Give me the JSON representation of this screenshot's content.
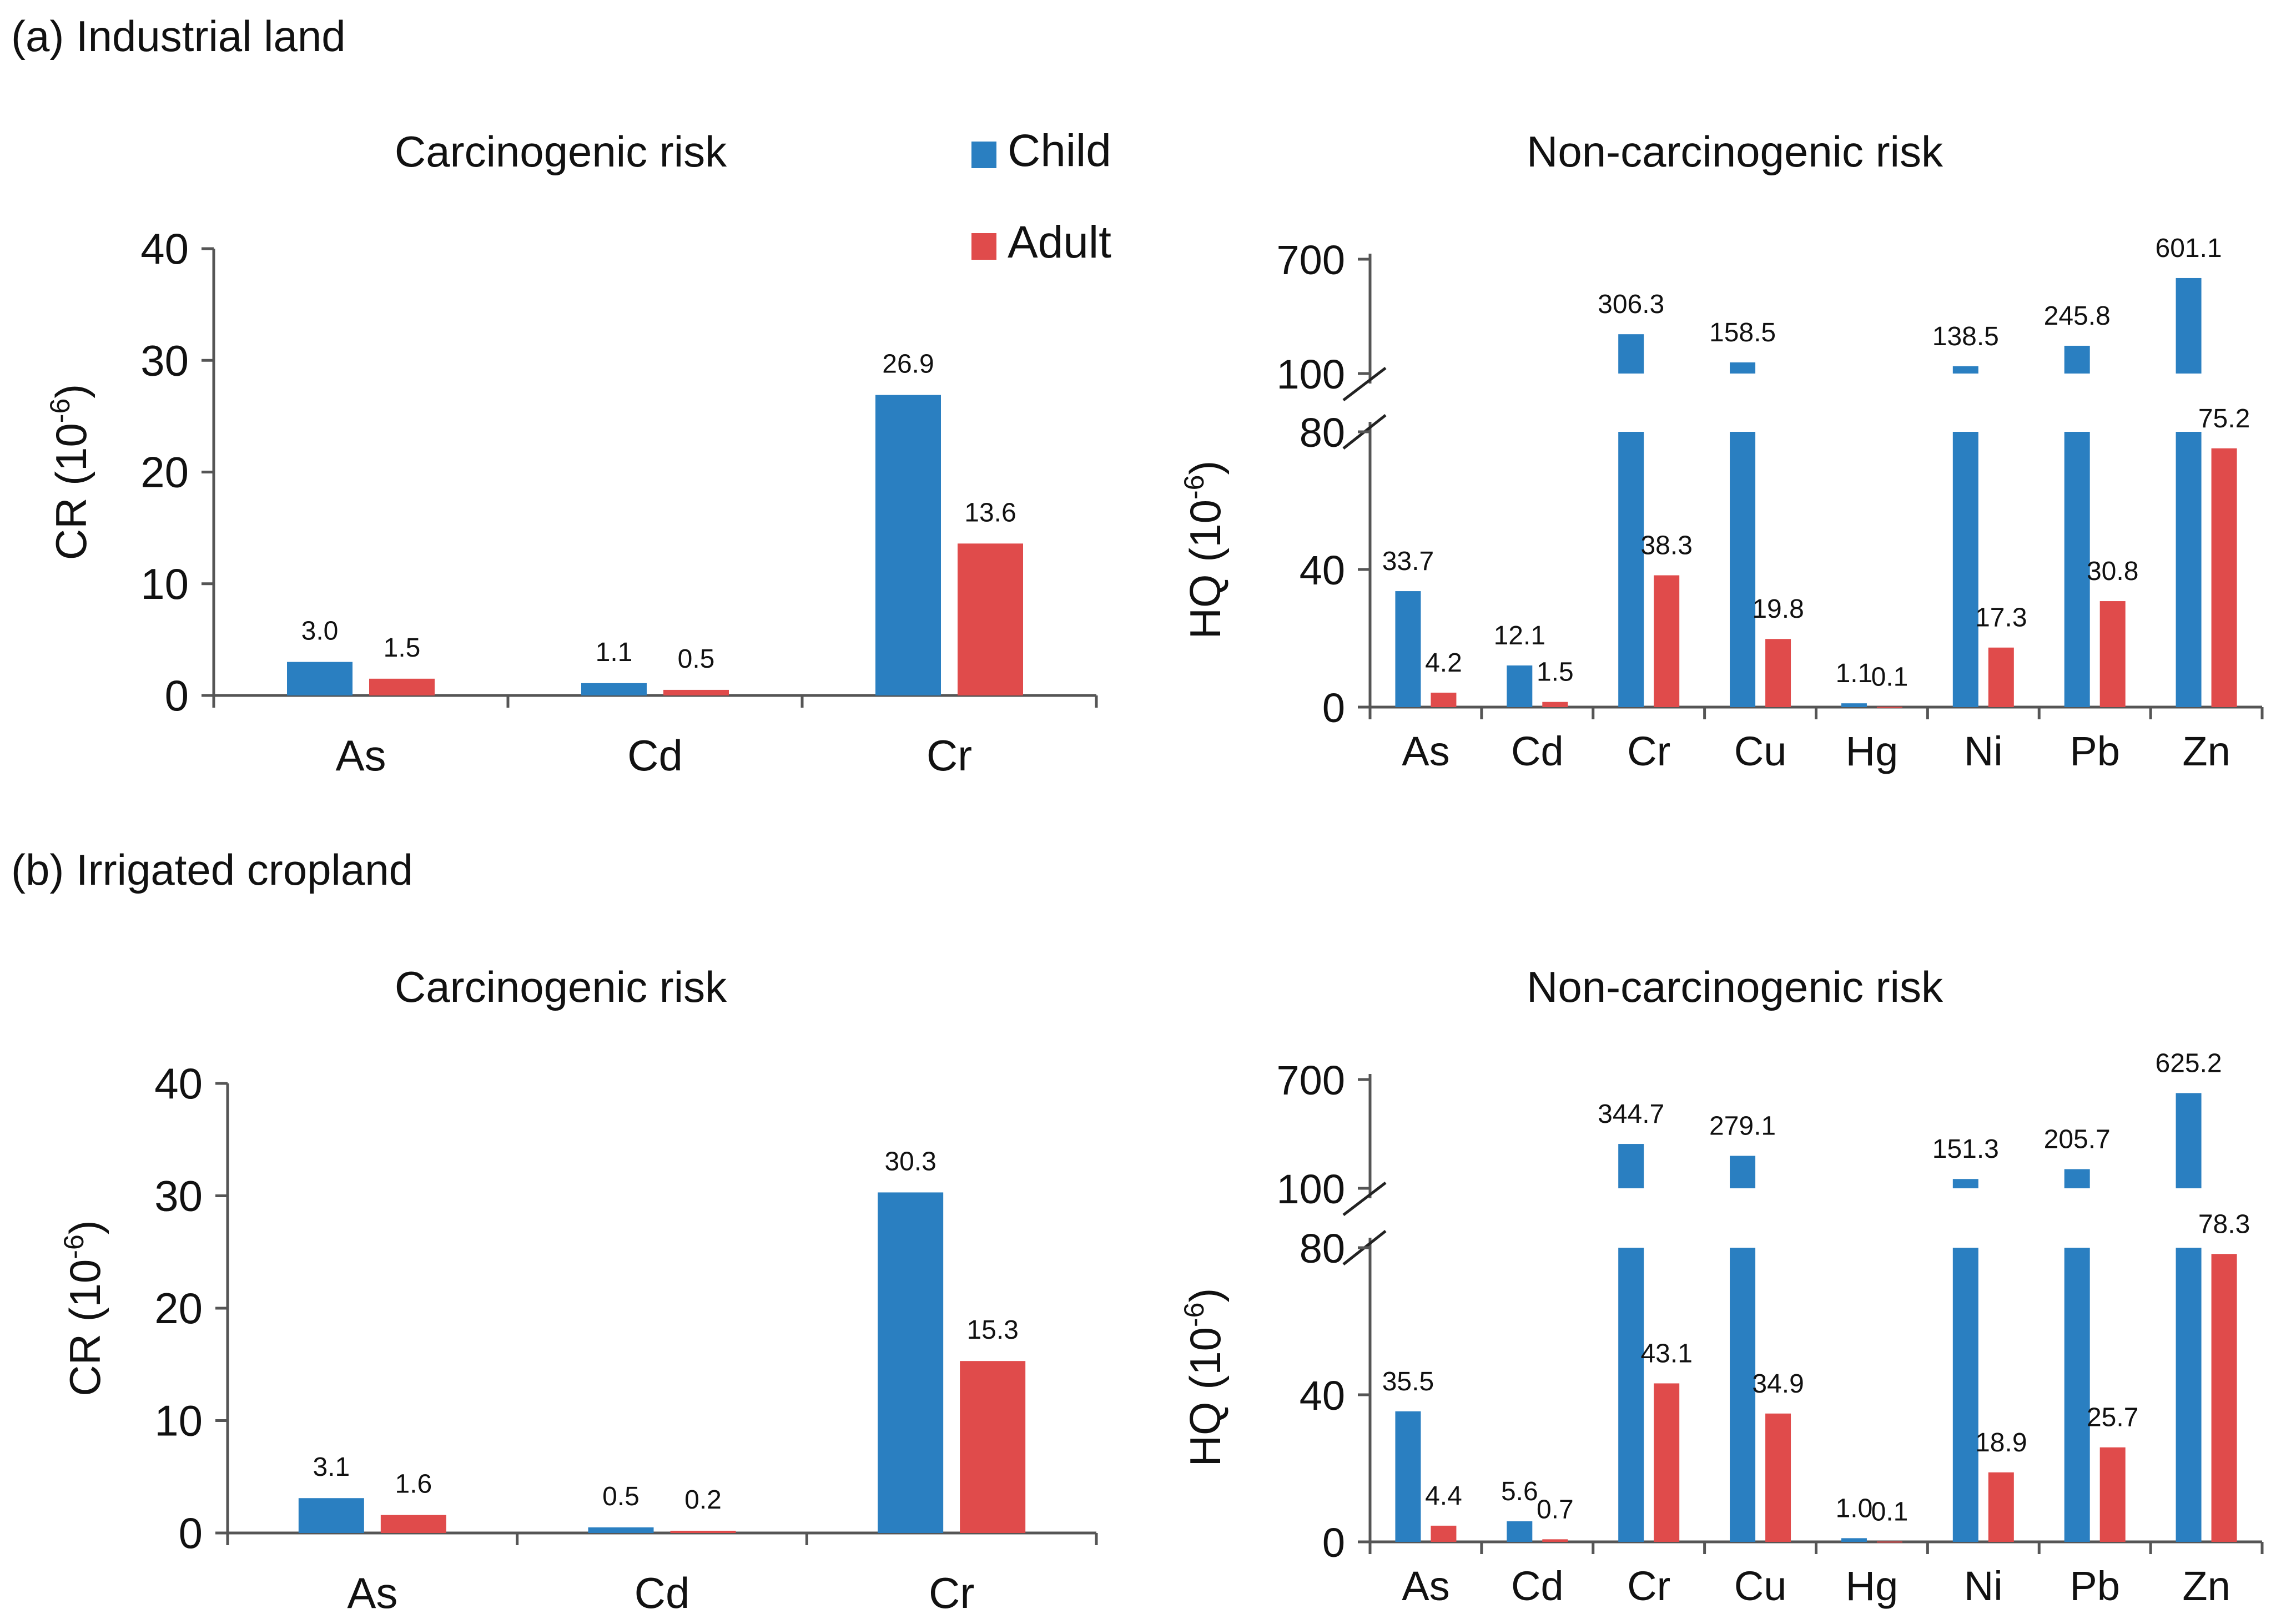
{
  "sections": {
    "a": {
      "label": "(a) Industrial land"
    },
    "b": {
      "label": "(b) Irrigated cropland"
    }
  },
  "legend": {
    "items": [
      {
        "name": "Child",
        "color": "#2a7fc1"
      },
      {
        "name": "Adult",
        "color": "#e04b4b"
      }
    ]
  },
  "chart_data": [
    {
      "id": "a_cr",
      "type": "bar",
      "title": "Carcinogenic risk",
      "ylabel_main": "CR (10",
      "ylabel_sup": "-6",
      "ylabel_tail": ")",
      "categories": [
        "As",
        "Cd",
        "Cr"
      ],
      "ylim": [
        0,
        40
      ],
      "yticks": [
        0,
        10,
        20,
        30,
        40
      ],
      "series": [
        {
          "name": "Child",
          "values": [
            3.0,
            1.1,
            26.9
          ],
          "labels": [
            "3.0",
            "1.1",
            "26.9"
          ]
        },
        {
          "name": "Adult",
          "values": [
            1.5,
            0.5,
            13.6
          ],
          "labels": [
            "1.5",
            "0.5",
            "13.6"
          ]
        }
      ]
    },
    {
      "id": "a_hq",
      "type": "bar",
      "title": "Non-carcinogenic risk",
      "ylabel_main": "HQ (10",
      "ylabel_sup": "-6",
      "ylabel_tail": ")",
      "categories": [
        "As",
        "Cd",
        "Cr",
        "Cu",
        "Hg",
        "Ni",
        "Pb",
        "Zn"
      ],
      "broken_axis": {
        "lower": [
          0,
          80
        ],
        "upper": [
          100,
          700
        ]
      },
      "yticks_lower": [
        0,
        40,
        80
      ],
      "yticks_upper": [
        100,
        700
      ],
      "series": [
        {
          "name": "Child",
          "values": [
            33.7,
            12.1,
            306.3,
            158.5,
            1.1,
            138.5,
            245.8,
            601.1
          ],
          "labels": [
            "33.7",
            "12.1",
            "306.3",
            "158.5",
            "1.1",
            "138.5",
            "245.8",
            "601.1"
          ]
        },
        {
          "name": "Adult",
          "values": [
            4.2,
            1.5,
            38.3,
            19.8,
            0.1,
            17.3,
            30.8,
            75.2
          ],
          "labels": [
            "4.2",
            "1.5",
            "38.3",
            "19.8",
            "0.1",
            "17.3",
            "30.8",
            "75.2"
          ]
        }
      ]
    },
    {
      "id": "b_cr",
      "type": "bar",
      "title": "Carcinogenic risk",
      "ylabel_main": "CR (10",
      "ylabel_sup": "-6",
      "ylabel_tail": ")",
      "categories": [
        "As",
        "Cd",
        "Cr"
      ],
      "ylim": [
        0,
        40
      ],
      "yticks": [
        0,
        10,
        20,
        30,
        40
      ],
      "series": [
        {
          "name": "Child",
          "values": [
            3.1,
            0.5,
            30.3
          ],
          "labels": [
            "3.1",
            "0.5",
            "30.3"
          ]
        },
        {
          "name": "Adult",
          "values": [
            1.6,
            0.2,
            15.3
          ],
          "labels": [
            "1.6",
            "0.2",
            "15.3"
          ]
        }
      ]
    },
    {
      "id": "b_hq",
      "type": "bar",
      "title": "Non-carcinogenic risk",
      "ylabel_main": "HQ (10",
      "ylabel_sup": "-6",
      "ylabel_tail": ")",
      "categories": [
        "As",
        "Cd",
        "Cr",
        "Cu",
        "Hg",
        "Ni",
        "Pb",
        "Zn"
      ],
      "broken_axis": {
        "lower": [
          0,
          80
        ],
        "upper": [
          100,
          700
        ]
      },
      "yticks_lower": [
        0,
        40,
        80
      ],
      "yticks_upper": [
        100,
        700
      ],
      "series": [
        {
          "name": "Child",
          "values": [
            35.5,
            5.6,
            344.7,
            279.1,
            1.0,
            151.3,
            205.7,
            625.2
          ],
          "labels": [
            "35.5",
            "5.6",
            "344.7",
            "279.1",
            "1.0",
            "151.3",
            "205.7",
            "625.2"
          ]
        },
        {
          "name": "Adult",
          "values": [
            4.4,
            0.7,
            43.1,
            34.9,
            0.1,
            18.9,
            25.7,
            78.3
          ],
          "labels": [
            "4.4",
            "0.7",
            "43.1",
            "34.9",
            "0.1",
            "18.9",
            "25.7",
            "78.3"
          ]
        }
      ]
    }
  ]
}
